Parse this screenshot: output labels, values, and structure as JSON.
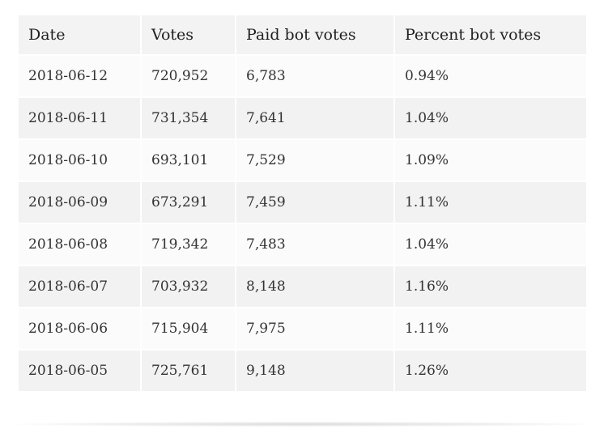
{
  "table": {
    "headers": [
      "Date",
      "Votes",
      "Paid bot votes",
      "Percent bot votes"
    ],
    "rows": [
      [
        "2018-06-12",
        "720,952",
        "6,783",
        "0.94%"
      ],
      [
        "2018-06-11",
        "731,354",
        "7,641",
        "1.04%"
      ],
      [
        "2018-06-10",
        "693,101",
        "7,529",
        "1.09%"
      ],
      [
        "2018-06-09",
        "673,291",
        "7,459",
        "1.11%"
      ],
      [
        "2018-06-08",
        "719,342",
        "7,483",
        "1.04%"
      ],
      [
        "2018-06-07",
        "703,932",
        "8,148",
        "1.16%"
      ],
      [
        "2018-06-06",
        "715,904",
        "7,975",
        "1.11%"
      ],
      [
        "2018-06-05",
        "725,761",
        "9,148",
        "1.26%"
      ]
    ]
  },
  "colors": {
    "header_bg": "#f3f3f3",
    "row_odd_bg": "#fbfbfb",
    "row_even_bg": "#f2f2f2",
    "text": "#333333"
  }
}
